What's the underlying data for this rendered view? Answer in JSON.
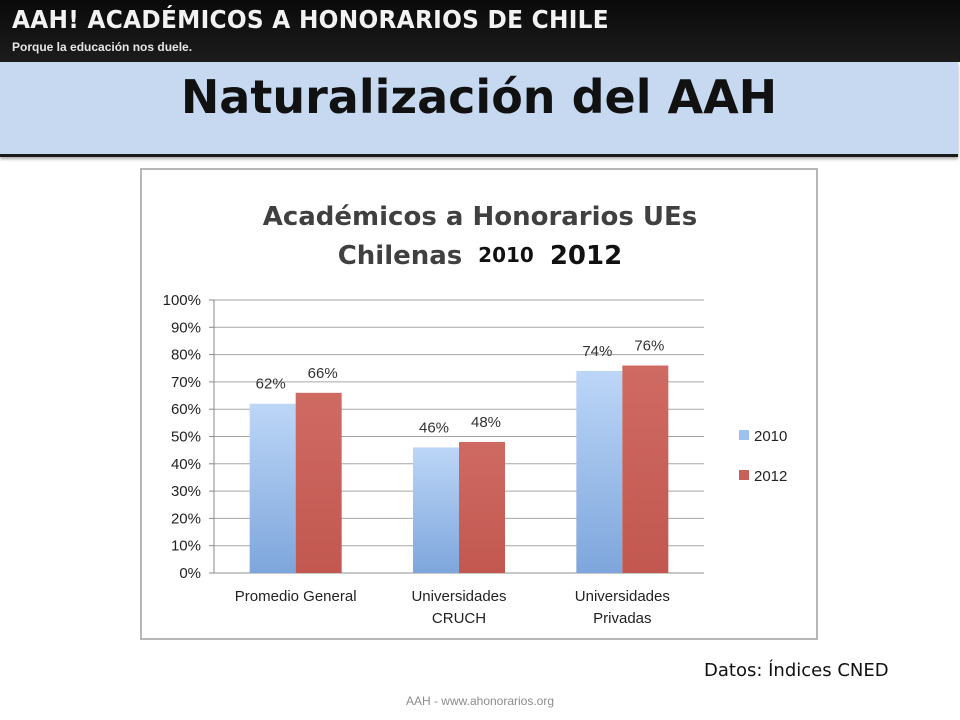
{
  "banner": {
    "title": "AAH! ACADÉMICOS A HONORARIOS DE CHILE",
    "subtitle": "Porque la educación nos duele."
  },
  "slide": {
    "title": "Naturalización del AAH",
    "source_note": "Datos: Índices CNED",
    "footer": "AAH - www.ahonorarios.org"
  },
  "colors": {
    "series_2010": "#9fc1ef",
    "series_2010_dark": "#7ea6dc",
    "series_2012": "#c9605a",
    "title_band": "#c6d9f1"
  },
  "chart_data": {
    "type": "bar",
    "title_lines": [
      "Académicos a Honorarios UEs",
      "Chilenas"
    ],
    "title_years": [
      "2010",
      "2012"
    ],
    "categories": [
      [
        "Promedio General"
      ],
      [
        "Universidades",
        "CRUCH"
      ],
      [
        "Universidades",
        "Privadas"
      ]
    ],
    "series": [
      {
        "name": "2010",
        "values": [
          62,
          46,
          74
        ],
        "labels": [
          "62%",
          "46%",
          "74%"
        ]
      },
      {
        "name": "2012",
        "values": [
          66,
          48,
          76
        ],
        "labels": [
          "66%",
          "48%",
          "76%"
        ]
      }
    ],
    "yticks": [
      "0%",
      "10%",
      "20%",
      "30%",
      "40%",
      "50%",
      "60%",
      "70%",
      "80%",
      "90%",
      "100%"
    ],
    "ylim": [
      0,
      100
    ],
    "grid": true,
    "legend": "right"
  }
}
